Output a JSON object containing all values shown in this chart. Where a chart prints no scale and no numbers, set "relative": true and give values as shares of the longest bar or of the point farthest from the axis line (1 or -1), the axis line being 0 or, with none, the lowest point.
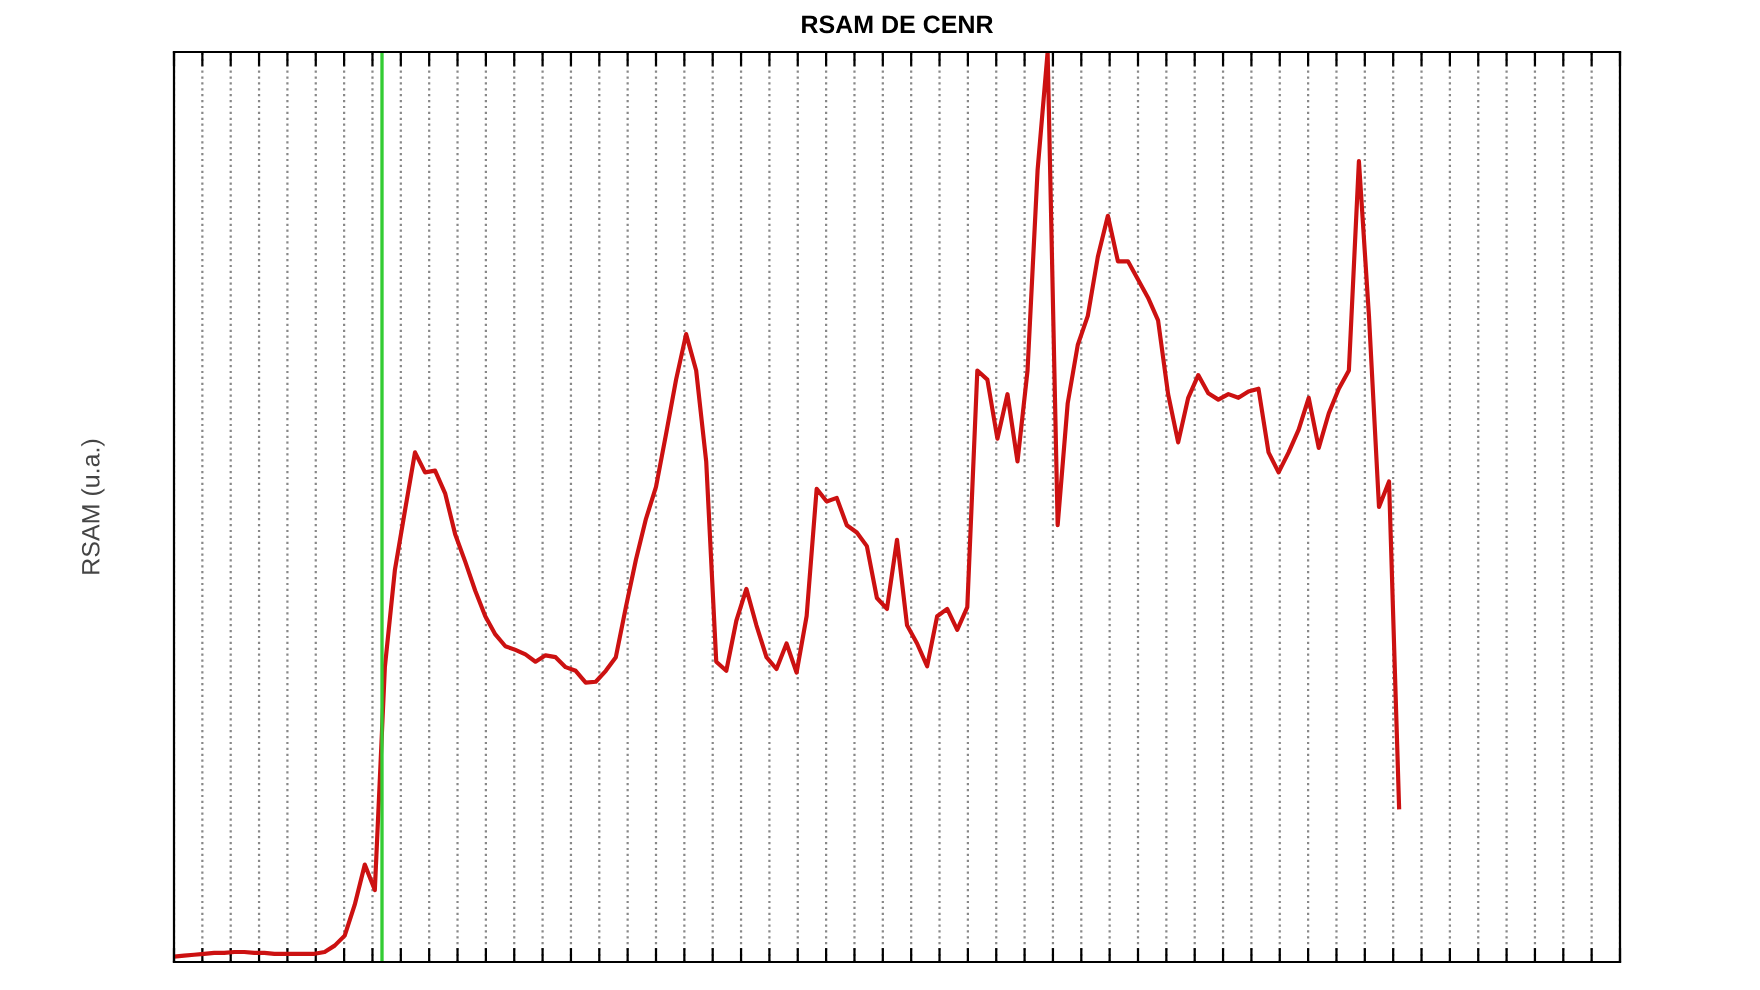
{
  "chart_data": {
    "type": "line",
    "title": "RSAM DE CENR",
    "ylabel": "RSAM (u.a.)",
    "relative": true,
    "grid": "x",
    "line_style": "solid",
    "categories": [
      null,
      null,
      null,
      null,
      null,
      null,
      null,
      null,
      null,
      null,
      null,
      null,
      null,
      null,
      null,
      null,
      null,
      null,
      null,
      null,
      null,
      null,
      null,
      null,
      null,
      null,
      null,
      null,
      null,
      null,
      null,
      null,
      null,
      null,
      null,
      null,
      null,
      null,
      null,
      null,
      null,
      null,
      null,
      null,
      null,
      null,
      null,
      null,
      null,
      null,
      null,
      null,
      null,
      null,
      null,
      null,
      null,
      null,
      null,
      null,
      null,
      null,
      null,
      null,
      null,
      null,
      null,
      null,
      null,
      null,
      null,
      null,
      null,
      null,
      null,
      null,
      null,
      null,
      null,
      null,
      null,
      null,
      null,
      null,
      null,
      null,
      null,
      null,
      null,
      null,
      null,
      null,
      null,
      null,
      null,
      null,
      null,
      null,
      null,
      null,
      null,
      null,
      null,
      null,
      null,
      null,
      null,
      null,
      null,
      null,
      null,
      null,
      null,
      null,
      null,
      null,
      null,
      null,
      null,
      null,
      null,
      null,
      null,
      null,
      null,
      null,
      null,
      null,
      null,
      null,
      null,
      null,
      null,
      null,
      null,
      null,
      null,
      null,
      null,
      null,
      null,
      null,
      null,
      null,
      null
    ],
    "series": [
      {
        "color": "#cc1111",
        "values": [
          0.006,
          0.007,
          0.008,
          0.009,
          0.01,
          0.01,
          0.011,
          0.011,
          0.01,
          0.01,
          0.009,
          0.009,
          0.009,
          0.009,
          0.009,
          0.011,
          0.018,
          0.029,
          0.063,
          0.107,
          0.079,
          0.324,
          0.431,
          0.496,
          0.56,
          0.538,
          0.54,
          0.515,
          0.47,
          0.44,
          0.408,
          0.38,
          0.36,
          0.347,
          0.343,
          0.338,
          0.33,
          0.337,
          0.335,
          0.324,
          0.32,
          0.307,
          0.308,
          0.32,
          0.335,
          0.39,
          0.442,
          0.487,
          0.522,
          0.58,
          0.64,
          0.69,
          0.65,
          0.55,
          0.33,
          0.32,
          0.375,
          0.41,
          0.37,
          0.335,
          0.322,
          0.35,
          0.318,
          0.38,
          0.52,
          0.506,
          0.51,
          0.48,
          0.472,
          0.457,
          0.4,
          0.388,
          0.464,
          0.37,
          0.35,
          0.325,
          0.38,
          0.388,
          0.365,
          0.39,
          0.65,
          0.64,
          0.575,
          0.624,
          0.55,
          0.65,
          0.87,
          1,
          0.48,
          0.614,
          0.678,
          0.71,
          0.775,
          0.82,
          0.77,
          0.77,
          0.75,
          0.73,
          0.705,
          0.624,
          0.571,
          0.62,
          0.645,
          0.625,
          0.618,
          0.624,
          0.62,
          0.627,
          0.63,
          0.56,
          0.538,
          0.56,
          0.585,
          0.62,
          0.565,
          0.603,
          0.63,
          0.65,
          0.88,
          0.71,
          0.5,
          0.528,
          0.17,
          null,
          null,
          null,
          null,
          null,
          null,
          null,
          null,
          null,
          null,
          null,
          null,
          null,
          null,
          null,
          null,
          null,
          null,
          null,
          null,
          null,
          null
        ]
      }
    ]
  }
}
